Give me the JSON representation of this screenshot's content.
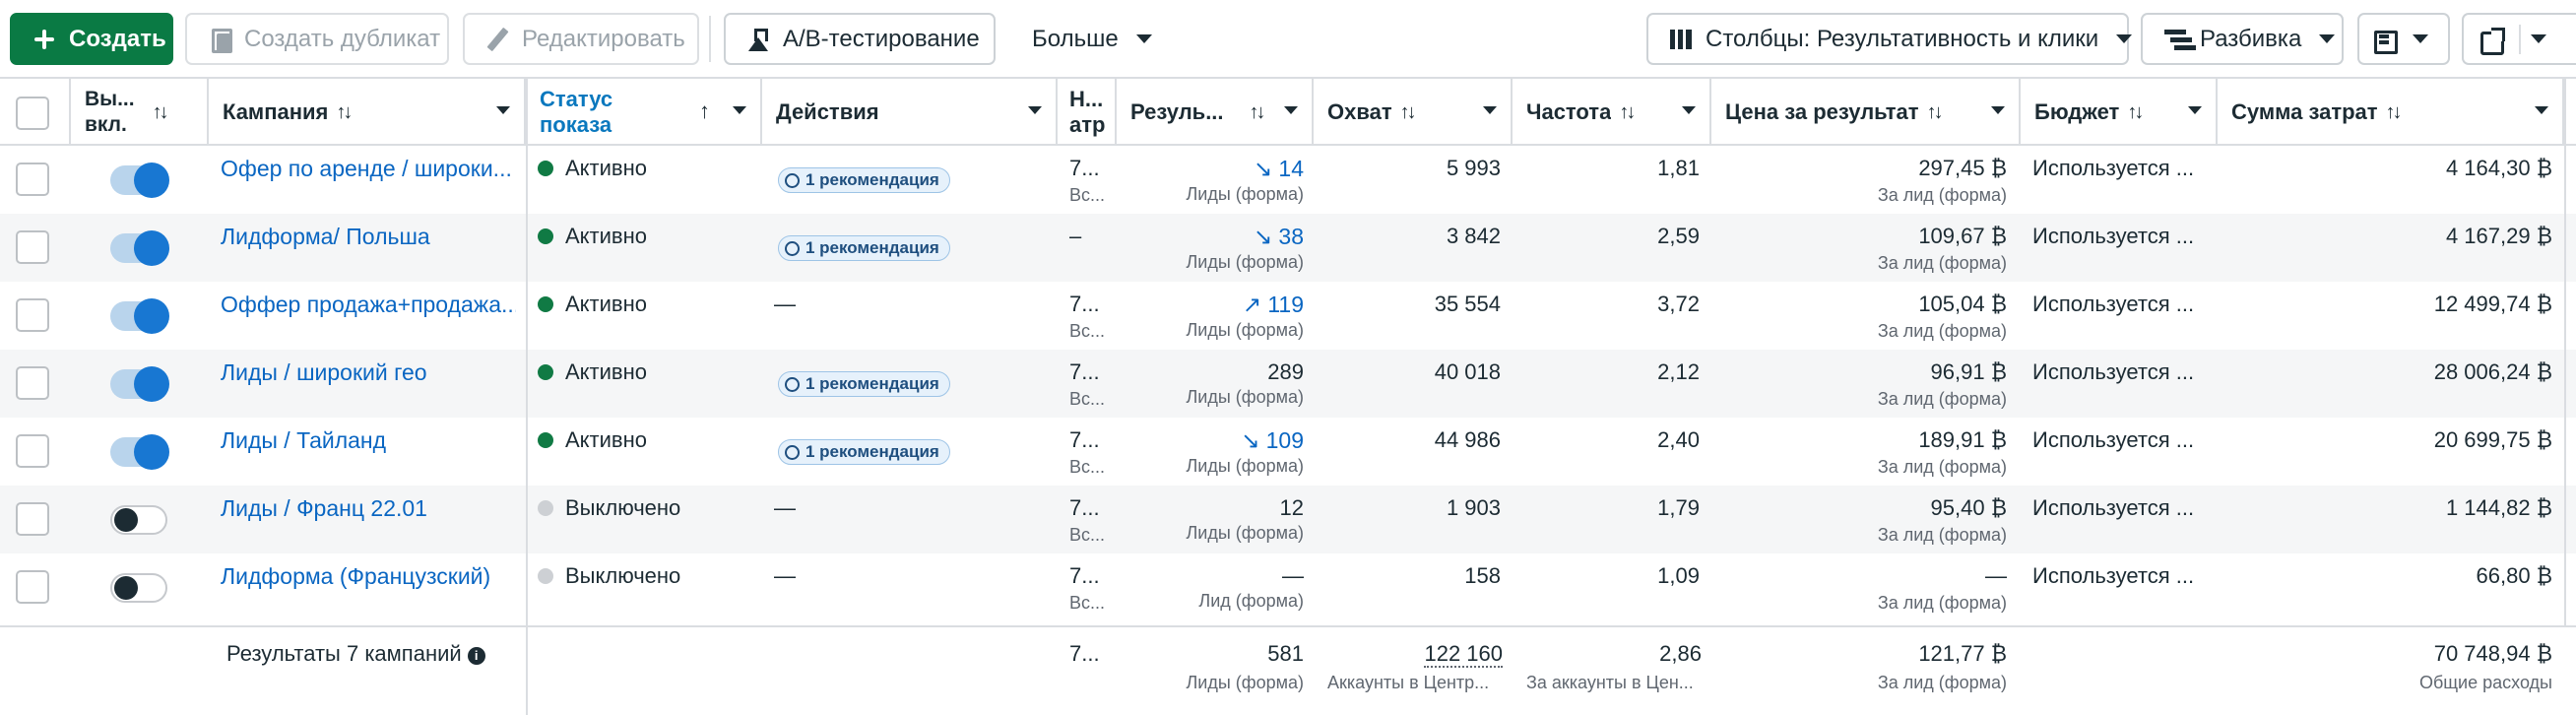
{
  "toolbar": {
    "create": "Создать",
    "duplicate": "Создать дубликат",
    "edit": "Редактировать",
    "ab_test": "A/B-тестирование",
    "more": "Больше",
    "columns": "Столбцы: Результативность и клики",
    "breakdown": "Разбивка"
  },
  "headers": {
    "toggle": "Вы... вкл.",
    "toggle_l1": "Вы...",
    "toggle_l2": "вкл.",
    "campaign": "Кампания",
    "status_l1": "Статус",
    "status_l2": "показа",
    "actions": "Действия",
    "attr_l1": "Н...",
    "attr_l2": "атр",
    "results": "Резуль...",
    "reach": "Охват",
    "frequency": "Частота",
    "cost_per_result": "Цена за результат",
    "budget": "Бюджет",
    "amount_spent": "Сумма затрат"
  },
  "rows": [
    {
      "on": true,
      "name": "Офер по аренде / широки...",
      "status": "Активно",
      "status_active": true,
      "action": "1 рекомендация",
      "attr": "7...",
      "attr_sub": "Вс...",
      "trend": "down",
      "result": "14",
      "result_sub": "Лиды (форма)",
      "reach": "5 993",
      "freq": "1,81",
      "cost": "297,45 ₿",
      "cost_sub": "За лид (форма)",
      "budget": "Используется ...",
      "spent": "4 164,30 ₿"
    },
    {
      "on": true,
      "name": "Лидформа/ Польша",
      "status": "Активно",
      "status_active": true,
      "action": "1 рекомендация",
      "attr": "–",
      "attr_sub": "",
      "trend": "down",
      "result": "38",
      "result_sub": "Лиды (форма)",
      "reach": "3 842",
      "freq": "2,59",
      "cost": "109,67 ₿",
      "cost_sub": "За лид (форма)",
      "budget": "Используется ...",
      "spent": "4 167,29 ₿"
    },
    {
      "on": true,
      "name": "Оффер продажа+продажа...",
      "status": "Активно",
      "status_active": true,
      "action": "—",
      "attr": "7...",
      "attr_sub": "Вс...",
      "trend": "up",
      "result": "119",
      "result_sub": "Лиды (форма)",
      "reach": "35 554",
      "freq": "3,72",
      "cost": "105,04 ₿",
      "cost_sub": "За лид (форма)",
      "budget": "Используется ...",
      "spent": "12 499,74 ₿"
    },
    {
      "on": true,
      "name": "Лиды / широкий гео",
      "status": "Активно",
      "status_active": true,
      "action": "1 рекомендация",
      "attr": "7...",
      "attr_sub": "Вс...",
      "trend": "",
      "result": "289",
      "result_sub": "Лиды (форма)",
      "reach": "40 018",
      "freq": "2,12",
      "cost": "96,91 ₿",
      "cost_sub": "За лид (форма)",
      "budget": "Используется ...",
      "spent": "28 006,24 ₿"
    },
    {
      "on": true,
      "name": "Лиды / Тайланд",
      "status": "Активно",
      "status_active": true,
      "action": "1 рекомендация",
      "attr": "7...",
      "attr_sub": "Вс...",
      "trend": "down",
      "result": "109",
      "result_sub": "Лиды (форма)",
      "reach": "44 986",
      "freq": "2,40",
      "cost": "189,91 ₿",
      "cost_sub": "За лид (форма)",
      "budget": "Используется ...",
      "spent": "20 699,75 ₿"
    },
    {
      "on": false,
      "name": "Лиды / Франц 22.01",
      "status": "Выключено",
      "status_active": false,
      "action": "—",
      "attr": "7...",
      "attr_sub": "Вс...",
      "trend": "",
      "result": "12",
      "result_sub": "Лиды (форма)",
      "reach": "1 903",
      "freq": "1,79",
      "cost": "95,40 ₿",
      "cost_sub": "За лид (форма)",
      "budget": "Используется ...",
      "spent": "1 144,82 ₿"
    },
    {
      "on": false,
      "name": "Лидформа (Французский)",
      "status": "Выключено",
      "status_active": false,
      "action": "—",
      "attr": "7...",
      "attr_sub": "Вс...",
      "trend": "",
      "result": "—",
      "result_sub": "Лид (форма)",
      "reach": "158",
      "freq": "1,09",
      "cost": "—",
      "cost_sub": "За лид (форма)",
      "budget": "Используется ...",
      "spent": "66,80 ₿"
    }
  ],
  "footer": {
    "label": "Результаты 7 кампаний",
    "attr": "7...",
    "result": "581",
    "result_sub": "Лиды (форма)",
    "reach": "122 160",
    "reach_sub": "Аккаунты в Центр...",
    "freq": "2,86",
    "freq_sub": "За аккаунты в Цен...",
    "cost": "121,77 ₿",
    "cost_sub": "За лид (форма)",
    "spent": "70 748,94 ₿",
    "spent_sub": "Общие расходы"
  },
  "colors": {
    "primary": "#0a7a44",
    "link": "#0a66c2",
    "toggle_on": "#1877d2",
    "status_active": "#107a44"
  }
}
